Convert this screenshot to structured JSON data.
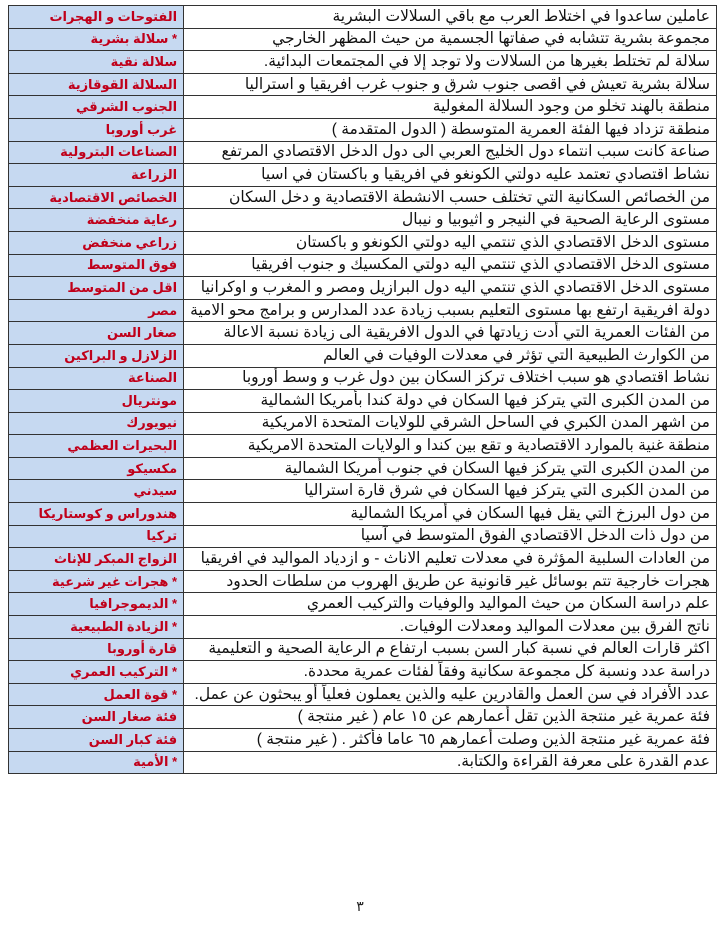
{
  "rows": [
    {
      "definition": "عاملين ساعدوا في اختلاط العرب مع باقي السلالات البشرية",
      "term": "الفتوحات و الهجرات"
    },
    {
      "definition": "مجموعة بشرية تتشابه في صفاتها الجسمية من حيث المظهر الخارجي",
      "term": "* سلالة بشرية"
    },
    {
      "definition": "سلالة لم تختلط بغيرها من السلالات ولا توجد إلا في المجتمعات البدائية.",
      "term": "سلالة نقية"
    },
    {
      "definition": "سلالة بشرية تعيش في اقصى جنوب شرق و جنوب غرب افريقيا و استراليا",
      "term": "السلالة القوقازية"
    },
    {
      "definition": "منطقة بالهند تخلو من وجود السلالة المغولية",
      "term": "الجنوب الشرقي"
    },
    {
      "definition": "منطقة تزداد فيها الفئة العمرية المتوسطة ( الدول المتقدمة )",
      "term": "غرب أوروبا"
    },
    {
      "definition": "صناعة كانت سبب انتماء دول الخليج العربي الى دول الدخل الاقتصادي المرتفع",
      "term": "الصناعات البترولية"
    },
    {
      "definition": "نشاط اقتصادي تعتمد عليه دولتي الكونغو في افريقيا و باكستان في اسيا",
      "term": "الزراعة"
    },
    {
      "definition": "من الخصائص السكانية التي تختلف حسب الانشطة الاقتصادية و دخل السكان",
      "term": "الخصائص الاقتصادية"
    },
    {
      "definition": "مستوى الرعاية الصحية في النيجر و اثيوبيا و نيبال",
      "term": "رعاية منخفضة"
    },
    {
      "definition": "مستوى الدخل الاقتصادي الذي تنتمي اليه دولتي الكونغو و باكستان",
      "term": "زراعي منخفض"
    },
    {
      "definition": "مستوى الدخل الاقتصادي الذي تنتمي اليه دولتي المكسيك و جنوب افريقيا",
      "term": "فوق المتوسط"
    },
    {
      "definition": "مستوى الدخل الاقتصادي الذي تنتمي اليه دول البرازيل ومصر و المغرب و اوكرانيا",
      "term": "اقل من المتوسط"
    },
    {
      "definition": "دولة افريقية ارتفع بها مستوى التعليم بسبب زيادة عدد المدارس و برامج محو الامية",
      "term": "مصر"
    },
    {
      "definition": "من الفئات العمرية التي أدت زيادتها في الدول الافريقية الى زيادة نسبة الاعالة",
      "term": "صغار السن"
    },
    {
      "definition": "من الكوارث الطبيعية التي تؤثر في معدلات الوفيات في العالم",
      "term": "الزلازل و البراكين"
    },
    {
      "definition": "نشاط اقتصادي هو سبب اختلاف تركز السكان بين دول غرب و وسط أوروبا",
      "term": "الصناعة"
    },
    {
      "definition": "من المدن الكبرى التي يتركز فيها السكان في دولة كندا بأمريكا الشمالية",
      "term": "مونتريال"
    },
    {
      "definition": "من اشهر المدن الكبري في الساحل الشرقي للولايات المتحدة الامريكية",
      "term": "نيويورك"
    },
    {
      "definition": "منطقة غنية بالموارد الاقتصادية و تقع بين كندا و الولايات المتحدة الامريكية",
      "term": "البحيرات العظمي"
    },
    {
      "definition": "من المدن الكبرى التي يتركز فيها السكان في جنوب أمريكا الشمالية",
      "term": "مكسيكو"
    },
    {
      "definition": "من المدن الكبرى التي يتركز فيها السكان في شرق قارة استراليا",
      "term": "سيدني"
    },
    {
      "definition": "من دول البرزخ التي يقل فيها السكان في أمريكا الشمالية",
      "term": "هندوراس و كوستاريكا"
    },
    {
      "definition": "من دول ذات الدخل الاقتصادي الفوق المتوسط في آسيا",
      "term": "تركيا"
    },
    {
      "definition": "من العادات السلبية المؤثرة في معدلات تعليم الاناث - و ازدياد المواليد في افريقيا",
      "term": "الزواج المبكر للإناث"
    },
    {
      "definition": "هجرات خارجية تتم بوسائل غير قانونية عن طريق الهروب من سلطات الحدود",
      "term": "* هجرات غير شرعية"
    },
    {
      "definition": "علم دراسة السكان من حيث المواليد والوفيات والتركيب العمري",
      "term": "* الديموجرافيا"
    },
    {
      "definition": "ناتج الفرق بين معدلات المواليد ومعدلات الوفيات.",
      "term": "* الزيادة الطبيعية"
    },
    {
      "definition": "اكثر قارات العالم في نسبة كبار السن بسبب ارتفاع م الرعاية الصحية و التعليمية",
      "term": "قارة أوروبا"
    },
    {
      "definition": "دراسة عدد ونسبة كل مجموعة سكانية وفقاً لفئات عمرية محددة.",
      "term": "* التركيب العمري"
    },
    {
      "definition": "عدد الأفراد في سن العمل والقادرين عليه والذين يعملون فعلياً أو يبحثون عن عمل.",
      "term": "* قوة العمل"
    },
    {
      "definition": "فئة عمرية غير منتجة الذين تقل أعمارهم عن ١٥ عام ( غير منتجة )",
      "term": "فئة صغار السن"
    },
    {
      "definition": "فئة عمرية غير منتجة الذين وصلت أعمارهم ٦٥ عاما فأكثر . ( غير منتجة )",
      "term": "فئة كبار السن"
    },
    {
      "definition": "عدم القدرة على معرفة القراءة والكتابة.",
      "term": "* الأمية"
    }
  ],
  "page_number": "٣",
  "colors": {
    "term_bg": "#c6d9f1",
    "term_text": "#c0001a"
  }
}
